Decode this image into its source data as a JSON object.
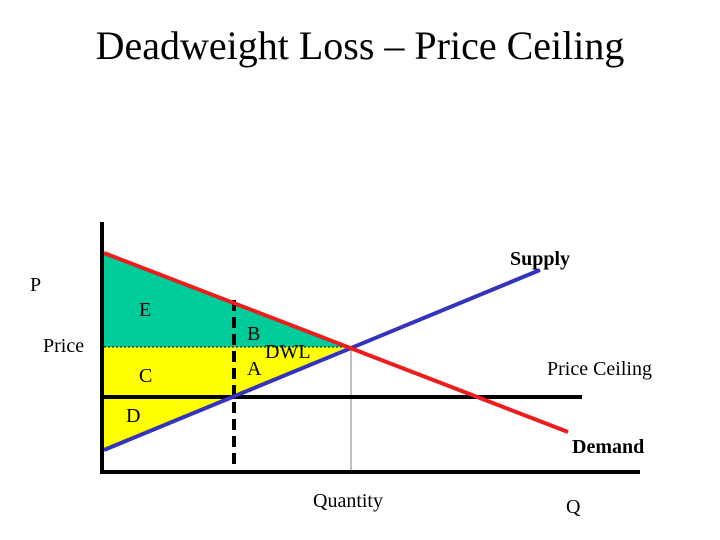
{
  "title": "Deadweight Loss – Price Ceiling",
  "axes": {
    "y_label": "P",
    "x_label": "Q",
    "price_label": "Price",
    "quantity_label": "Quantity"
  },
  "curves": {
    "supply_label": "Supply",
    "demand_label": "Demand",
    "ceiling_label": "Price Ceiling"
  },
  "regions": {
    "e": "E",
    "b": "B",
    "dwl": "DWL",
    "a": "A",
    "c": "C",
    "d": "D"
  },
  "colors": {
    "supply": "#3333bb",
    "demand": "#ee1c1c",
    "consumer_surplus": "#00cc99",
    "producer_surplus": "#ffff00",
    "axis": "#000000"
  }
}
